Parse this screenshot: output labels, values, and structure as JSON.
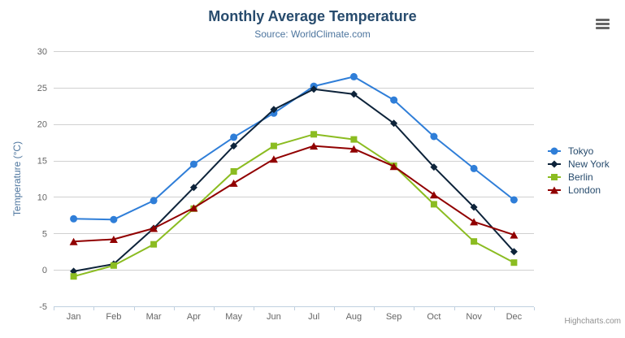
{
  "header": {
    "title": "Monthly Average Temperature",
    "subtitle": "Source: WorldClimate.com"
  },
  "toolbar": {
    "context_menu_icon": "hamburger-icon"
  },
  "credits": {
    "label": "Highcharts.com"
  },
  "colors": {
    "title": "#274b6d",
    "subtitle": "#4d759e",
    "axis_title": "#4d759e",
    "tick_label": "#666666",
    "grid_line": "#d0d0d0",
    "axis_line": "#c0d0e0",
    "legend_text": "#274b6d",
    "credits": "#909090",
    "menu_icon": "#666666",
    "background": "#ffffff"
  },
  "chart_data": {
    "type": "line",
    "title": "Monthly Average Temperature",
    "subtitle": "Source: WorldClimate.com",
    "xlabel": "",
    "ylabel": "Temperature (°C)",
    "ylim": [
      -5,
      30
    ],
    "ytick_interval": 5,
    "grid": true,
    "legend_position": "right",
    "categories": [
      "Jan",
      "Feb",
      "Mar",
      "Apr",
      "May",
      "Jun",
      "Jul",
      "Aug",
      "Sep",
      "Oct",
      "Nov",
      "Dec"
    ],
    "series": [
      {
        "name": "Tokyo",
        "color": "#2f7ed8",
        "marker": "circle",
        "values": [
          7.0,
          6.9,
          9.5,
          14.5,
          18.2,
          21.5,
          25.2,
          26.5,
          23.3,
          18.3,
          13.9,
          9.6
        ]
      },
      {
        "name": "New York",
        "color": "#0d233a",
        "marker": "diamond",
        "values": [
          -0.2,
          0.8,
          5.7,
          11.3,
          17.0,
          22.0,
          24.8,
          24.1,
          20.1,
          14.1,
          8.6,
          2.5
        ]
      },
      {
        "name": "Berlin",
        "color": "#8bbc21",
        "marker": "square",
        "values": [
          -0.9,
          0.6,
          3.5,
          8.4,
          13.5,
          17.0,
          18.6,
          17.9,
          14.3,
          9.0,
          3.9,
          1.0
        ]
      },
      {
        "name": "London",
        "color": "#910000",
        "marker": "triangle",
        "values": [
          3.9,
          4.2,
          5.7,
          8.5,
          11.9,
          15.2,
          17.0,
          16.6,
          14.2,
          10.3,
          6.6,
          4.8
        ]
      }
    ]
  }
}
